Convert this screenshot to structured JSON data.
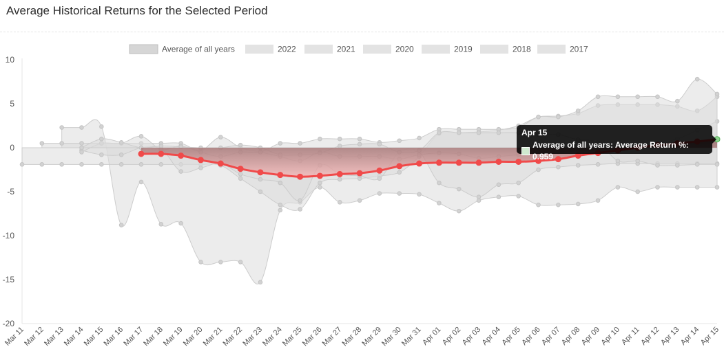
{
  "panel": {
    "title": "Average Historical Returns for the Selected Period"
  },
  "colors": {
    "area_fill": "#dcdcdc",
    "area_stroke": "#cccccc",
    "average_line": "#f04a4a",
    "average_fill_top": "#8a5a5a",
    "average_fill_bottom": "#f7b3b3",
    "highlight_point": "#8fd18f"
  },
  "tooltip": {
    "date": "Apr 15",
    "text": "Average of all years: Average Return %: 0.959"
  },
  "chart_data": {
    "type": "area",
    "title": "Average Historical Returns for the Selected Period",
    "xlabel": "",
    "ylabel": "",
    "ylim": [
      -20,
      10
    ],
    "yticks": [
      "10",
      "5",
      "0",
      "-5",
      "-10",
      "-15",
      "-20"
    ],
    "grid": false,
    "legend_position": "top",
    "categories": [
      "Mar 11",
      "Mar 12",
      "Mar 13",
      "Mar 14",
      "Mar 15",
      "Mar 16",
      "Mar 17",
      "Mar 18",
      "Mar 19",
      "Mar 20",
      "Mar 21",
      "Mar 22",
      "Mar 23",
      "Mar 24",
      "Mar 25",
      "Mar 26",
      "Mar 27",
      "Mar 28",
      "Mar 29",
      "Mar 30",
      "Mar 31",
      "Apr 01",
      "Apr 02",
      "Apr 03",
      "Apr 04",
      "Apr 05",
      "Apr 06",
      "Apr 07",
      "Apr 08",
      "Apr 09",
      "Apr 10",
      "Apr 11",
      "Apr 12",
      "Apr 13",
      "Apr 14",
      "Apr 15"
    ],
    "series": [
      {
        "name": "Average of all years",
        "values": [
          null,
          null,
          null,
          null,
          null,
          null,
          -0.7,
          -0.7,
          -0.9,
          -1.4,
          -1.8,
          -2.4,
          -2.8,
          -3.1,
          -3.3,
          -3.2,
          -3.0,
          -2.9,
          -2.6,
          -2.1,
          -1.8,
          -1.7,
          -1.7,
          -1.7,
          -1.6,
          -1.6,
          -1.5,
          -1.3,
          -0.9,
          -0.6,
          -0.3,
          0.0,
          0.3,
          0.5,
          0.7,
          0.959
        ]
      },
      {
        "name": "2022",
        "values": [
          null,
          null,
          2.3,
          2.3,
          2.4,
          -8.8,
          -3.9,
          -8.7,
          -8.6,
          -13.0,
          -13.0,
          -13.0,
          -15.3,
          -7.1,
          -6.2,
          -4.5,
          -6.2,
          -6.0,
          -5.2,
          -5.2,
          -5.3,
          -6.3,
          -7.2,
          -6.0,
          -5.6,
          -5.5,
          -6.5,
          -6.5,
          -6.4,
          -6.0,
          -4.5,
          -5.0,
          -4.5,
          -4.5,
          -4.5,
          -4.5
        ]
      },
      {
        "name": "2021",
        "values": [
          -1.9,
          -1.9,
          -1.9,
          -1.9,
          -1.9,
          -1.9,
          -1.9,
          -1.9,
          -1.9,
          -1.9,
          -2.0,
          -3.5,
          -5.0,
          -6.5,
          -7.0,
          -4.0,
          -3.6,
          -3.5,
          -3.2,
          -2.8,
          -1.0,
          1.6,
          1.7,
          1.8,
          2.0,
          2.5,
          3.5,
          3.6,
          3.9,
          4.8,
          4.9,
          4.9,
          4.9,
          4.7,
          4.2,
          5.8
        ]
      },
      {
        "name": "2020",
        "values": [
          null,
          null,
          null,
          -0.3,
          -0.8,
          -0.8,
          0.0,
          -0.1,
          -2.7,
          -2.3,
          -1.8,
          -3.0,
          -3.6,
          -4.0,
          -6.0,
          -2.0,
          -3.0,
          -3.2,
          -3.5,
          -0.5,
          -0.5,
          -4.0,
          -4.7,
          -5.6,
          -4.2,
          -4.0,
          -2.5,
          -2.2,
          -2.0,
          -1.9,
          -1.8,
          -1.8,
          -1.8,
          -1.8,
          -1.8,
          -1.8
        ]
      },
      {
        "name": "2019",
        "values": [
          null,
          0.5,
          0.5,
          0.5,
          0.5,
          0.5,
          0.5,
          0.5,
          0.5,
          -0.3,
          1.2,
          0.0,
          -0.5,
          -1.0,
          -1.5,
          -0.5,
          -1.0,
          -1.0,
          -1.0,
          -1.3,
          -0.8,
          -0.6,
          -0.7,
          -1.2,
          -1.0,
          -0.8,
          -0.5,
          -0.5,
          -0.3,
          -0.2,
          0.0,
          0.2,
          0.5,
          1.0,
          2.0,
          3.0
        ]
      },
      {
        "name": "2018",
        "values": [
          null,
          null,
          null,
          -0.5,
          0.5,
          0.5,
          1.3,
          -0.2,
          0.2,
          -0.5,
          -1.0,
          -0.5,
          -0.5,
          0.5,
          0.5,
          1.0,
          1.0,
          1.0,
          0.6,
          0.8,
          1.1,
          2.1,
          2.1,
          2.1,
          2.1,
          2.3,
          3.5,
          3.5,
          4.2,
          5.8,
          5.8,
          5.8,
          5.8,
          5.3,
          7.8,
          6.1
        ]
      },
      {
        "name": "2017",
        "values": [
          null,
          null,
          null,
          0.0,
          1.0,
          0.6,
          0.0,
          0.2,
          0.1,
          0.0,
          0.0,
          0.3,
          0.0,
          -0.8,
          -0.8,
          -0.6,
          0.2,
          0.4,
          0.4,
          -0.5,
          -0.3,
          1.7,
          1.7,
          1.7,
          1.7,
          1.7,
          1.5,
          1.5,
          0.9,
          0.6,
          -1.5,
          -1.5,
          -2.0,
          -2.0,
          -1.9,
          -1.9
        ]
      }
    ]
  }
}
